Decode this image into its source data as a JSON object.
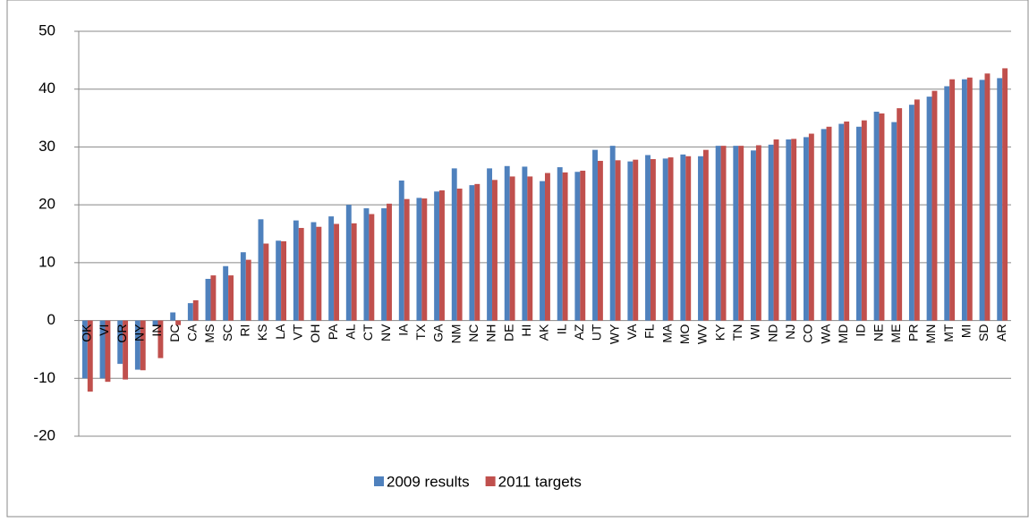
{
  "chart_data": {
    "type": "bar",
    "categories": [
      "OK",
      "VI",
      "OR",
      "NY",
      "IN",
      "DC",
      "CA",
      "MS",
      "SC",
      "RI",
      "KS",
      "LA",
      "VT",
      "OH",
      "PA",
      "AL",
      "CT",
      "NV",
      "IA",
      "TX",
      "GA",
      "NM",
      "NC",
      "NH",
      "DE",
      "HI",
      "AK",
      "IL",
      "AZ",
      "UT",
      "WY",
      "VA",
      "FL",
      "MA",
      "MO",
      "WV",
      "KY",
      "TN",
      "WI",
      "ND",
      "NJ",
      "CO",
      "WA",
      "MD",
      "ID",
      "NE",
      "ME",
      "PR",
      "MN",
      "MT",
      "MI",
      "SD",
      "AR"
    ],
    "series": [
      {
        "name": "2009 results",
        "color": "#4f81bd",
        "values": [
          -10,
          -10,
          -7.5,
          -8.5,
          -1,
          1.4,
          3,
          7.2,
          9.4,
          11.8,
          17.5,
          13.8,
          17.3,
          17,
          18,
          20,
          19.4,
          19.4,
          24.2,
          21.2,
          22.3,
          26.3,
          23.4,
          26.3,
          26.7,
          26.6,
          24.1,
          26.5,
          25.7,
          29.5,
          30.2,
          27.5,
          28.6,
          28,
          28.7,
          28.4,
          30.2,
          30.2,
          29.4,
          30.4,
          31.3,
          31.7,
          33.1,
          34,
          33.5,
          36.1,
          34.3,
          37.3,
          38.7,
          40.5,
          41.7,
          41.6,
          41.9
        ]
      },
      {
        "name": "2011 targets",
        "color": "#c0504d",
        "values": [
          -12.3,
          -10.6,
          -10.2,
          -8.6,
          -6.5,
          -0.8,
          3.5,
          7.8,
          7.8,
          10.5,
          13.3,
          13.7,
          16,
          16.2,
          16.7,
          16.8,
          18.4,
          20.2,
          21,
          21.1,
          22.5,
          22.8,
          23.6,
          24.3,
          24.9,
          24.9,
          25.5,
          25.6,
          25.9,
          27.6,
          27.7,
          27.8,
          27.9,
          28.2,
          28.4,
          29.5,
          30.2,
          30.2,
          30.3,
          31.3,
          31.4,
          32.3,
          33.5,
          34.4,
          34.6,
          35.8,
          36.7,
          38.2,
          39.7,
          41.7,
          42,
          42.7,
          43.6
        ]
      }
    ],
    "ylim": [
      -20,
      50
    ],
    "yticks": [
      -20,
      -10,
      0,
      10,
      20,
      30,
      40,
      50
    ],
    "grid": true,
    "legend": "bottom"
  }
}
